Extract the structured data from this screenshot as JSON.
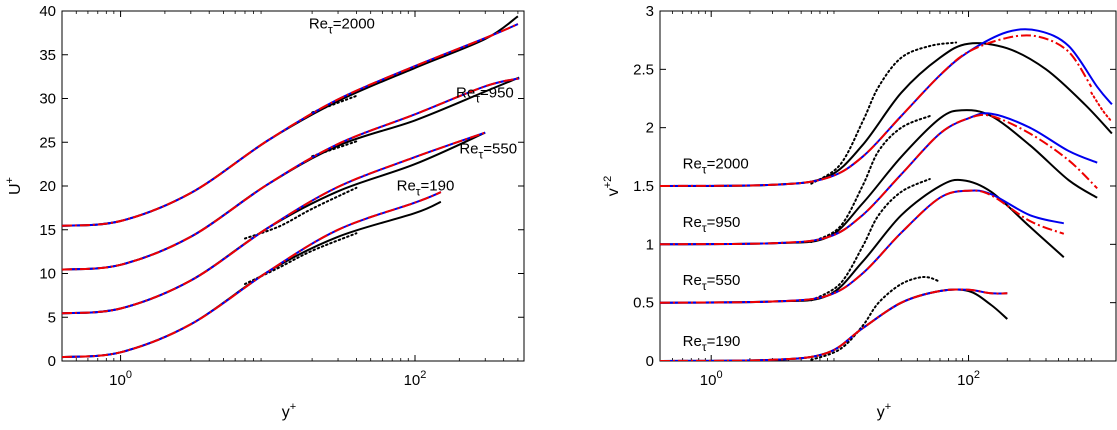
{
  "chart_data": [
    {
      "type": "line",
      "xscale": "log",
      "xlabel_base": "y",
      "xlabel_sup": "+",
      "ylabel_base": "U",
      "ylabel_sup": "+",
      "xlim": [
        0.4,
        550
      ],
      "ylim": [
        0,
        40
      ],
      "xticks": [
        {
          "value": 1,
          "base": "10",
          "exp": "0"
        },
        {
          "value": 100,
          "base": "10",
          "exp": "2"
        }
      ],
      "yticks": [
        0,
        5,
        10,
        15,
        20,
        25,
        30,
        35,
        40
      ],
      "colors": {
        "black": "#000000",
        "blue": "#0000ee",
        "red": "#ee0000"
      },
      "annotations": [
        {
          "base": "Re",
          "sub": "τ",
          "rest": "=2000",
          "x": 19,
          "y": 38
        },
        {
          "base": "Re",
          "sub": "τ",
          "rest": "=950",
          "x": 190,
          "y": 30.1
        },
        {
          "base": "Re",
          "sub": "τ",
          "rest": "=550",
          "x": 200,
          "y": 23.7
        },
        {
          "base": "Re",
          "sub": "τ",
          "rest": "=190",
          "x": 75,
          "y": 19.5
        }
      ],
      "series": [
        {
          "id": "u2000-black",
          "color": "black",
          "style": "solid",
          "x": [
            0.4,
            1,
            3,
            10,
            30,
            100,
            300,
            500
          ],
          "y": [
            15.45,
            16.0,
            19.2,
            25.2,
            29.7,
            33.5,
            36.8,
            39.4
          ]
        },
        {
          "id": "u2000-dns-dot",
          "color": "black",
          "style": "dotted",
          "x": [
            20,
            40
          ],
          "y": [
            28.4,
            30.3
          ]
        },
        {
          "id": "u2000-blue",
          "color": "blue",
          "style": "solid",
          "x": [
            0.4,
            1,
            3,
            10,
            30,
            100,
            300,
            500
          ],
          "y": [
            15.45,
            16.0,
            19.2,
            25.2,
            29.9,
            33.7,
            36.9,
            38.5
          ]
        },
        {
          "id": "u2000-red",
          "color": "red",
          "style": "dashdot",
          "x": [
            0.4,
            1,
            3,
            10,
            30,
            100,
            300,
            500
          ],
          "y": [
            15.45,
            16.0,
            19.2,
            25.2,
            29.9,
            33.7,
            36.9,
            38.5
          ]
        },
        {
          "id": "u950-black",
          "color": "black",
          "style": "solid",
          "x": [
            0.4,
            1,
            3,
            10,
            30,
            100,
            300,
            510
          ],
          "y": [
            10.45,
            11.0,
            14.2,
            20.2,
            24.6,
            27.5,
            30.8,
            32.4
          ]
        },
        {
          "id": "u950-dns-dot",
          "color": "black",
          "style": "dotted",
          "x": [
            20,
            40
          ],
          "y": [
            23.4,
            25.1
          ]
        },
        {
          "id": "u950-blue",
          "color": "blue",
          "style": "solid",
          "x": [
            0.4,
            1,
            3,
            10,
            30,
            100,
            300,
            510
          ],
          "y": [
            10.45,
            11.0,
            14.2,
            20.2,
            24.8,
            28.2,
            31.4,
            32.3
          ]
        },
        {
          "id": "u950-red",
          "color": "red",
          "style": "dashdot",
          "x": [
            0.4,
            1,
            3,
            10,
            30,
            100,
            300,
            510
          ],
          "y": [
            10.45,
            11.0,
            14.2,
            20.2,
            24.8,
            28.2,
            31.4,
            32.3
          ]
        },
        {
          "id": "u550-black",
          "color": "black",
          "style": "solid",
          "x": [
            0.4,
            1,
            3,
            10,
            30,
            100,
            300
          ],
          "y": [
            5.45,
            6.0,
            9.2,
            15.2,
            19.4,
            22.5,
            26.1
          ]
        },
        {
          "id": "u550-dns-dot",
          "color": "black",
          "style": "dotted",
          "x": [
            7,
            12,
            20,
            40
          ],
          "y": [
            14.0,
            15.4,
            17.4,
            19.8
          ]
        },
        {
          "id": "u550-blue",
          "color": "blue",
          "style": "solid",
          "x": [
            0.4,
            1,
            3,
            10,
            30,
            100,
            300
          ],
          "y": [
            5.45,
            6.0,
            9.2,
            15.2,
            19.9,
            23.3,
            26.1
          ]
        },
        {
          "id": "u550-red",
          "color": "red",
          "style": "dashdot",
          "x": [
            0.4,
            1,
            3,
            10,
            30,
            100,
            300
          ],
          "y": [
            5.45,
            6.0,
            9.2,
            15.2,
            19.9,
            23.3,
            26.1
          ]
        },
        {
          "id": "u190-black",
          "color": "black",
          "style": "solid",
          "x": [
            0.4,
            1,
            3,
            10,
            30,
            100,
            150
          ],
          "y": [
            0.45,
            1.0,
            4.2,
            10.2,
            14.2,
            16.9,
            18.2
          ]
        },
        {
          "id": "u190-dns-dot",
          "color": "black",
          "style": "dotted",
          "x": [
            7,
            12,
            20,
            40
          ],
          "y": [
            8.8,
            10.7,
            12.6,
            14.6
          ]
        },
        {
          "id": "u190-blue",
          "color": "blue",
          "style": "solid",
          "x": [
            0.4,
            1,
            3,
            10,
            30,
            100,
            150
          ],
          "y": [
            0.45,
            1.0,
            4.2,
            10.2,
            15.0,
            18.1,
            19.3
          ]
        },
        {
          "id": "u190-red",
          "color": "red",
          "style": "dashdot",
          "x": [
            0.4,
            1,
            3,
            10,
            30,
            100,
            150
          ],
          "y": [
            0.45,
            1.0,
            4.2,
            10.2,
            15.0,
            18.1,
            19.3
          ]
        }
      ]
    },
    {
      "type": "line",
      "xscale": "log",
      "xlabel_base": "y",
      "xlabel_sup": "+",
      "ylabel_base": "v",
      "ylabel_sup": "+2",
      "xlim": [
        0.4,
        1400
      ],
      "ylim": [
        0,
        3
      ],
      "xticks": [
        {
          "value": 1,
          "base": "10",
          "exp": "0"
        },
        {
          "value": 100,
          "base": "10",
          "exp": "2"
        }
      ],
      "yticks": [
        "0",
        "0.5",
        "1",
        "1.5",
        "2",
        "2.5",
        "3"
      ],
      "colors": {
        "black": "#000000",
        "blue": "#0000ee",
        "red": "#ee0000"
      },
      "annotations": [
        {
          "base": "Re",
          "sub": "τ",
          "rest": "=2000",
          "x": 0.6,
          "y": 1.65
        },
        {
          "base": "Re",
          "sub": "τ",
          "rest": "=950",
          "x": 0.6,
          "y": 1.15
        },
        {
          "base": "Re",
          "sub": "τ",
          "rest": "=550",
          "x": 0.6,
          "y": 0.65
        },
        {
          "base": "Re",
          "sub": "τ",
          "rest": "=190",
          "x": 0.6,
          "y": 0.13
        }
      ],
      "series": [
        {
          "id": "v2000-black",
          "color": "black",
          "style": "solid",
          "x": [
            0.4,
            3,
            8,
            15,
            30,
            60,
            100,
            200,
            400,
            800,
            1300
          ],
          "y": [
            1.5,
            1.51,
            1.58,
            1.85,
            2.3,
            2.6,
            2.72,
            2.68,
            2.5,
            2.2,
            1.95
          ]
        },
        {
          "id": "v2000-dot",
          "color": "black",
          "style": "dotted",
          "x": [
            6,
            10,
            15,
            20,
            30,
            50,
            80
          ],
          "y": [
            1.52,
            1.68,
            2.05,
            2.35,
            2.6,
            2.7,
            2.73
          ]
        },
        {
          "id": "v2000-blue",
          "color": "blue",
          "style": "solid",
          "x": [
            0.4,
            3,
            8,
            15,
            30,
            60,
            100,
            200,
            350,
            600,
            1000,
            1300
          ],
          "y": [
            1.5,
            1.51,
            1.57,
            1.75,
            2.1,
            2.45,
            2.65,
            2.82,
            2.83,
            2.7,
            2.35,
            2.2
          ]
        },
        {
          "id": "v2000-red",
          "color": "red",
          "style": "dashdot",
          "x": [
            0.4,
            3,
            8,
            15,
            30,
            60,
            100,
            200,
            350,
            600,
            900
          ],
          "y": [
            1.5,
            1.51,
            1.57,
            1.75,
            2.1,
            2.45,
            2.65,
            2.77,
            2.78,
            2.65,
            2.35
          ]
        },
        {
          "id": "v2000-pink",
          "color": "red",
          "style": "dotted",
          "x": [
            900,
            1100,
            1300
          ],
          "y": [
            2.3,
            2.15,
            2.05
          ]
        },
        {
          "id": "v950-black",
          "color": "black",
          "style": "solid",
          "x": [
            0.4,
            3,
            8,
            15,
            30,
            60,
            90,
            150,
            300,
            600,
            1000
          ],
          "y": [
            1.0,
            1.01,
            1.06,
            1.35,
            1.75,
            2.08,
            2.15,
            2.1,
            1.85,
            1.55,
            1.4
          ]
        },
        {
          "id": "v950-dot",
          "color": "black",
          "style": "dotted",
          "x": [
            6,
            10,
            15,
            20,
            30,
            50
          ],
          "y": [
            1.02,
            1.15,
            1.5,
            1.8,
            2.0,
            2.1
          ]
        },
        {
          "id": "v950-blue",
          "color": "blue",
          "style": "solid",
          "x": [
            0.4,
            3,
            8,
            15,
            30,
            60,
            100,
            150,
            300,
            600,
            1000
          ],
          "y": [
            1.0,
            1.01,
            1.06,
            1.25,
            1.6,
            1.95,
            2.08,
            2.12,
            2.0,
            1.8,
            1.7
          ]
        },
        {
          "id": "v950-red",
          "color": "red",
          "style": "dashdot",
          "x": [
            0.4,
            3,
            8,
            15,
            30,
            60,
            100,
            150,
            300,
            600,
            1000
          ],
          "y": [
            1.0,
            1.01,
            1.06,
            1.25,
            1.6,
            1.95,
            2.08,
            2.1,
            1.95,
            1.72,
            1.48
          ]
        },
        {
          "id": "v550-black",
          "color": "black",
          "style": "solid",
          "x": [
            0.4,
            3,
            8,
            15,
            30,
            60,
            90,
            150,
            300,
            550
          ],
          "y": [
            0.5,
            0.51,
            0.56,
            0.85,
            1.25,
            1.5,
            1.55,
            1.45,
            1.15,
            0.89
          ]
        },
        {
          "id": "v550-dot",
          "color": "black",
          "style": "dotted",
          "x": [
            6,
            10,
            15,
            20,
            30,
            50
          ],
          "y": [
            0.52,
            0.66,
            0.98,
            1.25,
            1.45,
            1.56
          ]
        },
        {
          "id": "v550-blue",
          "color": "blue",
          "style": "solid",
          "x": [
            0.4,
            3,
            8,
            15,
            30,
            60,
            100,
            150,
            300,
            550
          ],
          "y": [
            0.5,
            0.51,
            0.56,
            0.75,
            1.1,
            1.4,
            1.46,
            1.43,
            1.25,
            1.18
          ]
        },
        {
          "id": "v550-red",
          "color": "red",
          "style": "dashdot",
          "x": [
            0.4,
            3,
            8,
            15,
            30,
            60,
            100,
            150,
            300,
            550
          ],
          "y": [
            0.5,
            0.51,
            0.56,
            0.75,
            1.1,
            1.4,
            1.46,
            1.42,
            1.2,
            1.09
          ]
        },
        {
          "id": "v190-black",
          "color": "black",
          "style": "solid",
          "x": [
            0.4,
            3,
            8,
            15,
            30,
            60,
            100,
            150,
            200
          ],
          "y": [
            0.0,
            0.01,
            0.07,
            0.28,
            0.5,
            0.6,
            0.6,
            0.48,
            0.36
          ]
        },
        {
          "id": "v190-dot",
          "color": "black",
          "style": "dotted",
          "x": [
            6,
            10,
            15,
            20,
            30,
            45,
            60
          ],
          "y": [
            0.01,
            0.1,
            0.3,
            0.5,
            0.66,
            0.72,
            0.68
          ]
        },
        {
          "id": "v190-blue",
          "color": "blue",
          "style": "solid",
          "x": [
            0.4,
            3,
            8,
            15,
            30,
            60,
            100,
            150,
            200
          ],
          "y": [
            0.0,
            0.01,
            0.07,
            0.28,
            0.5,
            0.6,
            0.61,
            0.58,
            0.58
          ]
        },
        {
          "id": "v190-red",
          "color": "red",
          "style": "dashdot",
          "x": [
            0.4,
            3,
            8,
            15,
            30,
            60,
            100,
            150,
            200
          ],
          "y": [
            0.0,
            0.01,
            0.07,
            0.28,
            0.5,
            0.6,
            0.61,
            0.58,
            0.58
          ]
        }
      ]
    }
  ]
}
